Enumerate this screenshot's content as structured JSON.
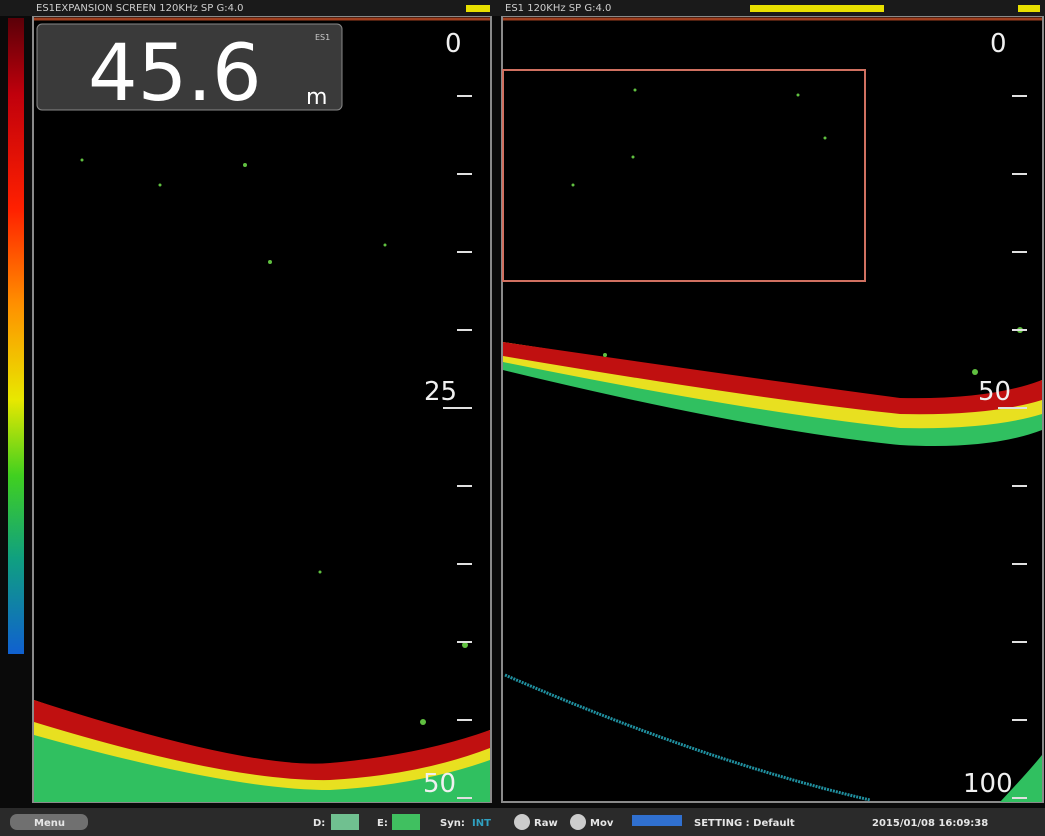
{
  "left_panel": {
    "header": "ES1EXPANSION SCREEN   120KHz SP   G:4.0",
    "depth_box": {
      "value": "45.6",
      "unit": "m",
      "source": "ES1"
    },
    "scale_labels": [
      "0",
      "25",
      "50"
    ]
  },
  "right_panel": {
    "header": "ES1   120KHz SP   G:4.0",
    "scale_labels": [
      "0",
      "50",
      "100"
    ]
  },
  "status_bar": {
    "menu": "Menu",
    "d_label": "D:",
    "e_label": "E:",
    "sync_label": "Syn:",
    "sync_value": "INT",
    "raw": "Raw",
    "mov": "Mov",
    "setting": "SETTING : Default",
    "datetime": "2015/01/08  16:09:38"
  }
}
